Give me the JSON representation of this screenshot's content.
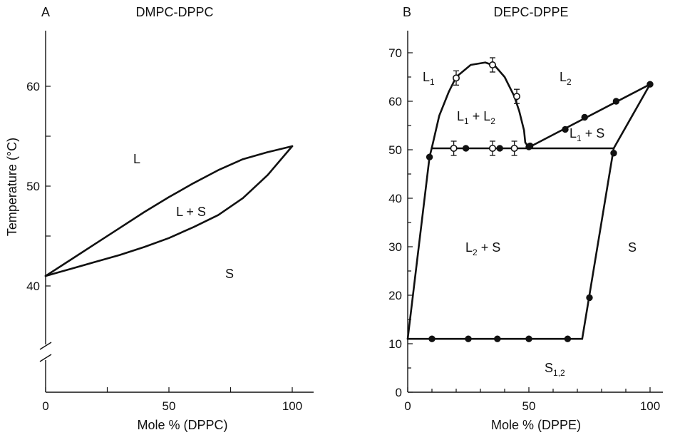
{
  "chart_data": [
    {
      "type": "line",
      "panel_label": "A",
      "title": "DMPC-DPPC",
      "xlabel": "Mole % (DPPC)",
      "ylabel": "Temperature (°C)",
      "xlim": [
        0,
        110
      ],
      "ylim": [
        30,
        65
      ],
      "axis_break": "y",
      "x_ticks": [
        0,
        25,
        50,
        75,
        100
      ],
      "x_tick_labels": [
        "0",
        "",
        "50",
        "",
        "100"
      ],
      "y_ticks": [
        40,
        45,
        50,
        55,
        60
      ],
      "y_tick_labels": [
        "40",
        "",
        "50",
        "",
        "60"
      ],
      "grid": false,
      "series": [
        {
          "x": [
            0,
            10,
            20,
            30,
            40,
            50,
            60,
            70,
            80,
            90,
            100
          ],
          "y": [
            41,
            42.6,
            44.2,
            45.8,
            47.4,
            48.9,
            50.3,
            51.6,
            52.7,
            53.4,
            54
          ]
        },
        {
          "x": [
            0,
            10,
            20,
            30,
            40,
            50,
            60,
            70,
            80,
            90,
            100
          ],
          "y": [
            41,
            41.7,
            42.4,
            43.1,
            43.9,
            44.8,
            45.9,
            47.1,
            48.8,
            51.1,
            54
          ]
        }
      ],
      "regions": [
        "L",
        "L + S",
        "S"
      ]
    },
    {
      "type": "line",
      "panel_label": "B",
      "title": "DEPC-DPPE",
      "xlabel": "Mole % (DPPE)",
      "ylabel": "",
      "xlim": [
        0,
        105
      ],
      "ylim": [
        0,
        75
      ],
      "x_ticks": [
        0,
        10,
        20,
        30,
        40,
        50,
        60,
        70,
        80,
        90,
        100
      ],
      "x_tick_labels": [
        "0",
        "",
        "",
        "",
        "",
        "50",
        "",
        "",
        "",
        "",
        "100"
      ],
      "y_ticks": [
        0,
        5,
        10,
        15,
        20,
        25,
        30,
        35,
        40,
        45,
        50,
        55,
        60,
        65,
        70
      ],
      "y_tick_labels": [
        "0",
        "",
        "10",
        "",
        "20",
        "",
        "30",
        "",
        "40",
        "",
        "50",
        "",
        "60",
        "",
        "70"
      ],
      "grid": false,
      "series": [
        {
          "x": [
            0,
            9,
            10
          ],
          "y": [
            11,
            48.5,
            50.5
          ]
        },
        {
          "x": [
            10,
            85
          ],
          "y": [
            50.3,
            50.3
          ]
        },
        {
          "x": [
            10,
            13,
            17,
            20,
            26,
            32,
            36,
            40,
            44,
            46,
            48,
            48.5,
            50
          ],
          "y": [
            50.5,
            57,
            62,
            65,
            67.5,
            68,
            67.3,
            65,
            61,
            58,
            54,
            51.5,
            50.5
          ]
        },
        {
          "x": [
            50,
            100
          ],
          "y": [
            50.5,
            63.5
          ]
        },
        {
          "x": [
            100,
            85
          ],
          "y": [
            63.5,
            50.3
          ]
        },
        {
          "x": [
            85,
            72
          ],
          "y": [
            50.3,
            11
          ]
        },
        {
          "x": [
            0,
            72
          ],
          "y": [
            11,
            11
          ]
        }
      ],
      "points_filled": [
        {
          "x": [
            9,
            24,
            38,
            50,
            85,
            10,
            25,
            37,
            50,
            66,
            75,
            50.5,
            65,
            73,
            86,
            100
          ],
          "y": [
            48.5,
            50.3,
            50.3,
            50.6,
            49.3,
            11,
            11,
            11,
            11,
            11,
            19.5,
            50.8,
            54.2,
            56.7,
            60,
            63.5
          ]
        }
      ],
      "points_open": [
        {
          "x": [
            20,
            35,
            45,
            19,
            35,
            44
          ],
          "y": [
            64.8,
            67.5,
            61,
            50.3,
            50.3,
            50.3
          ]
        }
      ],
      "regions": [
        "L",
        "1",
        "L",
        "2",
        "L",
        "1",
        " + L",
        "2",
        "L",
        "1",
        " + S",
        "L",
        "2",
        " + S",
        "S",
        "S",
        "1,2"
      ]
    }
  ]
}
